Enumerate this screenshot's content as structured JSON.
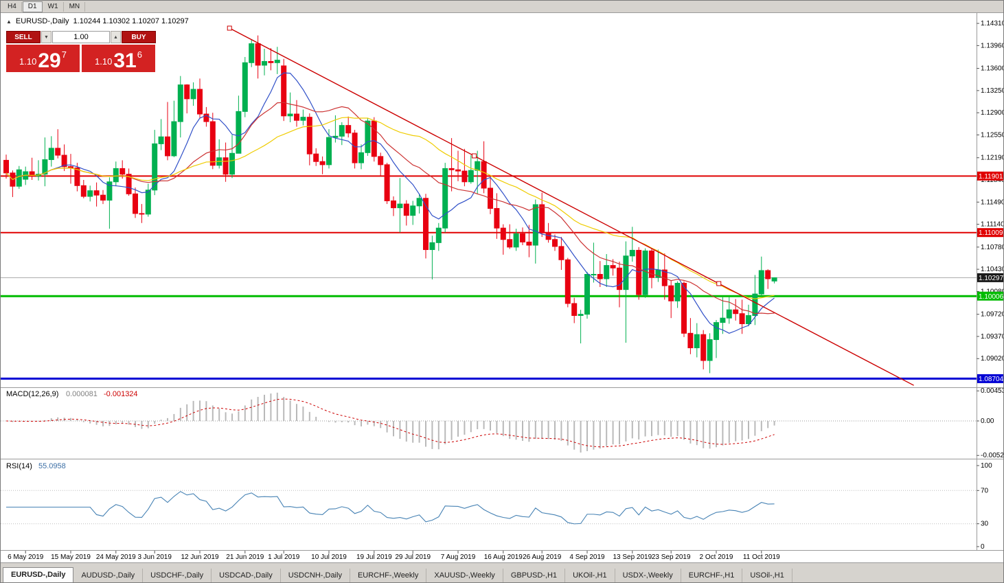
{
  "toolbar": {
    "timeframes": [
      "H4",
      "D1",
      "W1",
      "MN"
    ],
    "active": "D1"
  },
  "chart_header": {
    "collapse_icon": "▲",
    "symbol": "EURUSD-,Daily",
    "ohlc": "1.10244 1.10302 1.10207 1.10297"
  },
  "trade_panel": {
    "sell_label": "SELL",
    "buy_label": "BUY",
    "volume": "1.00",
    "spin_down_icon": "▼",
    "spin_up_icon": "▲",
    "sell_price": {
      "prefix": "1.10",
      "main": "29",
      "pip": "7"
    },
    "buy_price": {
      "prefix": "1.10",
      "main": "31",
      "pip": "6"
    }
  },
  "price_axis": [
    "1.14310",
    "1.13960",
    "1.13600",
    "1.13250",
    "1.12900",
    "1.12550",
    "1.12190",
    "1.11840",
    "1.11490",
    "1.11140",
    "1.10780",
    "1.10430",
    "1.10080",
    "1.09720",
    "1.09370",
    "1.09020"
  ],
  "macd_panel": {
    "name": "MACD(12,26,9)",
    "value_main": "0.000081",
    "value_signal": "-0.001324",
    "axis_labels": [
      "0.004536",
      "0.00",
      "-0.005205"
    ]
  },
  "rsi_panel": {
    "name": "RSI(14)",
    "value": "55.0958",
    "axis_labels": [
      "100",
      "70",
      "30",
      "0"
    ]
  },
  "tabs": [
    "EURUSD-,Daily",
    "AUDUSD-,Daily",
    "USDCHF-,Daily",
    "USDCAD-,Daily",
    "USDCNH-,Daily",
    "EURCHF-,Weekly",
    "XAUUSD-,Weekly",
    "GBPUSD-,H1",
    "UKOil-,H1",
    "USDX-,Weekly",
    "EURCHF-,H1",
    "USOil-,H1"
  ],
  "active_tab": 0,
  "chart_data": {
    "type": "candlestick",
    "symbol": "EURUSD",
    "timeframe": "Daily",
    "up_color": "#00B050",
    "down_color": "#E80011",
    "y_range": {
      "top": 1.1443,
      "bottom": 1.086
    },
    "levels": [
      {
        "label": "1.11901",
        "price": 1.11901,
        "color": "#e00000",
        "width": 2
      },
      {
        "label": "1.11009",
        "price": 1.11009,
        "color": "#e00000",
        "width": 2
      },
      {
        "label": "1.10006",
        "price": 1.10006,
        "color": "#00bb00",
        "width": 3
      },
      {
        "label": "1.08704",
        "price": 1.08704,
        "color": "#0000d4",
        "width": 3
      }
    ],
    "current_price": {
      "label": "1.10297",
      "price": 1.10297
    },
    "trendline": {
      "color": "#cc0000",
      "start": {
        "index": 34.6,
        "price": 1.14235
      },
      "end": {
        "index": 110.4,
        "price": 1.10204
      },
      "ray_to_index": 140.6
    },
    "moving_averages": [
      {
        "period": 8,
        "color": "#3050c8"
      },
      {
        "period": 17,
        "color": "#cc3333"
      },
      {
        "period": 30,
        "color": "#efcc00"
      }
    ],
    "macd": {
      "fast": 12,
      "slow": 26,
      "signal": 9,
      "histogram_color": "#b9b9b9",
      "signal_color": "#cc0000"
    },
    "rsi": {
      "period": 14,
      "color": "#4682B4",
      "levels": [
        70,
        30
      ]
    },
    "date_ticks": [
      {
        "index": 3,
        "label": "6 May 2019"
      },
      {
        "index": 10,
        "label": "15 May 2019"
      },
      {
        "index": 17,
        "label": "24 May 2019"
      },
      {
        "index": 23,
        "label": "3 Jun 2019"
      },
      {
        "index": 30,
        "label": "12 Jun 2019"
      },
      {
        "index": 37,
        "label": "21 Jun 2019"
      },
      {
        "index": 43,
        "label": "1 Jul 2019"
      },
      {
        "index": 50,
        "label": "10 Jul 2019"
      },
      {
        "index": 57,
        "label": "19 Jul 2019"
      },
      {
        "index": 63,
        "label": "29 Jul 2019"
      },
      {
        "index": 70,
        "label": "7 Aug 2019"
      },
      {
        "index": 77,
        "label": "16 Aug 2019"
      },
      {
        "index": 83,
        "label": "26 Aug 2019"
      },
      {
        "index": 90,
        "label": "4 Sep 2019"
      },
      {
        "index": 97,
        "label": "13 Sep 2019"
      },
      {
        "index": 103,
        "label": "23 Sep 2019"
      },
      {
        "index": 110,
        "label": "2 Oct 2019"
      },
      {
        "index": 117,
        "label": "11 Oct 2019"
      }
    ],
    "candles": [
      [
        "1 May 2019",
        1.1215,
        1.1224,
        1.1186,
        1.1195
      ],
      [
        "2 May 2019",
        1.1195,
        1.1199,
        1.1157,
        1.1174
      ],
      [
        "3 May 2019",
        1.1174,
        1.1206,
        1.117,
        1.12
      ],
      [
        "6 May 2019",
        1.1185,
        1.1205,
        1.1176,
        1.1197
      ],
      [
        "7 May 2019",
        1.1197,
        1.1219,
        1.1184,
        1.119
      ],
      [
        "8 May 2019",
        1.119,
        1.1215,
        1.1183,
        1.1193
      ],
      [
        "9 May 2019",
        1.1193,
        1.1251,
        1.1174,
        1.1216
      ],
      [
        "10 May 2019",
        1.1216,
        1.1253,
        1.1205,
        1.1234
      ],
      [
        "13 May 2019",
        1.1234,
        1.1264,
        1.1218,
        1.1223
      ],
      [
        "14 May 2019",
        1.1223,
        1.124,
        1.1198,
        1.1205
      ],
      [
        "15 May 2019",
        1.1205,
        1.1225,
        1.1178,
        1.1203
      ],
      [
        "16 May 2019",
        1.1203,
        1.1211,
        1.1166,
        1.1175
      ],
      [
        "17 May 2019",
        1.1175,
        1.1184,
        1.1155,
        1.1158
      ],
      [
        "20 May 2019",
        1.1158,
        1.1175,
        1.115,
        1.1167
      ],
      [
        "21 May 2019",
        1.1167,
        1.118,
        1.1142,
        1.116
      ],
      [
        "22 May 2019",
        1.116,
        1.1168,
        1.1146,
        1.1152
      ],
      [
        "23 May 2019",
        1.1152,
        1.1188,
        1.1107,
        1.1181
      ],
      [
        "24 May 2019",
        1.1181,
        1.1213,
        1.1174,
        1.1202
      ],
      [
        "27 May 2019",
        1.1202,
        1.1215,
        1.1186,
        1.1193
      ],
      [
        "28 May 2019",
        1.1193,
        1.1202,
        1.1159,
        1.1162
      ],
      [
        "29 May 2019",
        1.1162,
        1.1172,
        1.1124,
        1.1131
      ],
      [
        "30 May 2019",
        1.1131,
        1.1146,
        1.1116,
        1.113
      ],
      [
        "31 May 2019",
        1.113,
        1.1178,
        1.1126,
        1.1168
      ],
      [
        "3 Jun 2019",
        1.1168,
        1.1263,
        1.116,
        1.1241
      ],
      [
        "4 Jun 2019",
        1.1241,
        1.128,
        1.1231,
        1.1252
      ],
      [
        "5 Jun 2019",
        1.1252,
        1.1307,
        1.1215,
        1.1222
      ],
      [
        "6 Jun 2019",
        1.1222,
        1.1309,
        1.122,
        1.1276
      ],
      [
        "7 Jun 2019",
        1.1276,
        1.1348,
        1.1251,
        1.1334
      ],
      [
        "10 Jun 2019",
        1.1334,
        1.1335,
        1.1289,
        1.1312
      ],
      [
        "11 Jun 2019",
        1.1312,
        1.1338,
        1.1301,
        1.1327
      ],
      [
        "12 Jun 2019",
        1.1327,
        1.1344,
        1.1282,
        1.1288
      ],
      [
        "13 Jun 2019",
        1.1288,
        1.1299,
        1.1268,
        1.1276
      ],
      [
        "14 Jun 2019",
        1.1276,
        1.129,
        1.1201,
        1.1207
      ],
      [
        "17 Jun 2019",
        1.1207,
        1.1248,
        1.1202,
        1.1219
      ],
      [
        "18 Jun 2019",
        1.1219,
        1.1243,
        1.1181,
        1.1193
      ],
      [
        "19 Jun 2019",
        1.1193,
        1.1255,
        1.1187,
        1.1226
      ],
      [
        "20 Jun 2019",
        1.1226,
        1.1317,
        1.1226,
        1.1292
      ],
      [
        "21 Jun 2019",
        1.1292,
        1.1378,
        1.1283,
        1.1369
      ],
      [
        "24 Jun 2019",
        1.1369,
        1.1405,
        1.1362,
        1.1399
      ],
      [
        "25 Jun 2019",
        1.1399,
        1.1412,
        1.1344,
        1.1365
      ],
      [
        "26 Jun 2019",
        1.1365,
        1.1391,
        1.1349,
        1.1371
      ],
      [
        "27 Jun 2019",
        1.1371,
        1.1392,
        1.1357,
        1.1369
      ],
      [
        "28 Jun 2019",
        1.1369,
        1.1394,
        1.1351,
        1.1373
      ],
      [
        "1 Jul 2019",
        1.1364,
        1.1375,
        1.1277,
        1.1285
      ],
      [
        "2 Jul 2019",
        1.1285,
        1.1322,
        1.1275,
        1.1288
      ],
      [
        "3 Jul 2019",
        1.1288,
        1.131,
        1.1268,
        1.1278
      ],
      [
        "4 Jul 2019",
        1.1278,
        1.1295,
        1.127,
        1.1283
      ],
      [
        "5 Jul 2019",
        1.1283,
        1.1289,
        1.1207,
        1.1225
      ],
      [
        "8 Jul 2019",
        1.1225,
        1.1234,
        1.1206,
        1.1213
      ],
      [
        "9 Jul 2019",
        1.1213,
        1.1221,
        1.1193,
        1.1208
      ],
      [
        "10 Jul 2019",
        1.1208,
        1.1264,
        1.1202,
        1.1251
      ],
      [
        "11 Jul 2019",
        1.1251,
        1.1286,
        1.1243,
        1.1253
      ],
      [
        "12 Jul 2019",
        1.1253,
        1.1275,
        1.1239,
        1.127
      ],
      [
        "15 Jul 2019",
        1.127,
        1.1284,
        1.1251,
        1.1258
      ],
      [
        "16 Jul 2019",
        1.1258,
        1.1263,
        1.1202,
        1.1211
      ],
      [
        "17 Jul 2019",
        1.1211,
        1.124,
        1.1201,
        1.1227
      ],
      [
        "18 Jul 2019",
        1.1227,
        1.1282,
        1.1222,
        1.1277
      ],
      [
        "19 Jul 2019",
        1.1277,
        1.1283,
        1.1213,
        1.1221
      ],
      [
        "22 Jul 2019",
        1.1221,
        1.1227,
        1.1191,
        1.1208
      ],
      [
        "23 Jul 2019",
        1.1208,
        1.1211,
        1.1146,
        1.1151
      ],
      [
        "24 Jul 2019",
        1.1151,
        1.1158,
        1.1127,
        1.114
      ],
      [
        "25 Jul 2019",
        1.114,
        1.1187,
        1.1101,
        1.1146
      ],
      [
        "26 Jul 2019",
        1.1146,
        1.1152,
        1.1112,
        1.1128
      ],
      [
        "29 Jul 2019",
        1.1128,
        1.1151,
        1.1113,
        1.1143
      ],
      [
        "30 Jul 2019",
        1.1143,
        1.1162,
        1.1131,
        1.1155
      ],
      [
        "31 Jul 2019",
        1.1155,
        1.1162,
        1.106,
        1.1074
      ],
      [
        "1 Aug 2019",
        1.1074,
        1.1096,
        1.1027,
        1.1085
      ],
      [
        "2 Aug 2019",
        1.1085,
        1.1116,
        1.1072,
        1.1108
      ],
      [
        "5 Aug 2019",
        1.1108,
        1.1211,
        1.1101,
        1.1202
      ],
      [
        "6 Aug 2019",
        1.1202,
        1.125,
        1.1166,
        1.12
      ],
      [
        "7 Aug 2019",
        1.12,
        1.123,
        1.1182,
        1.1198
      ],
      [
        "8 Aug 2019",
        1.1198,
        1.1233,
        1.1174,
        1.1181
      ],
      [
        "9 Aug 2019",
        1.1181,
        1.1223,
        1.1178,
        1.1199
      ],
      [
        "12 Aug 2019",
        1.1199,
        1.123,
        1.1162,
        1.1213
      ],
      [
        "13 Aug 2019",
        1.1213,
        1.1245,
        1.1163,
        1.1171
      ],
      [
        "14 Aug 2019",
        1.1171,
        1.1191,
        1.113,
        1.1139
      ],
      [
        "15 Aug 2019",
        1.1139,
        1.1163,
        1.1091,
        1.1108
      ],
      [
        "16 Aug 2019",
        1.1108,
        1.1114,
        1.1066,
        1.109
      ],
      [
        "19 Aug 2019",
        1.109,
        1.1114,
        1.1075,
        1.1078
      ],
      [
        "20 Aug 2019",
        1.1078,
        1.1107,
        1.1072,
        1.1099
      ],
      [
        "21 Aug 2019",
        1.1099,
        1.1109,
        1.1081,
        1.1086
      ],
      [
        "22 Aug 2019",
        1.1086,
        1.1113,
        1.1062,
        1.1081
      ],
      [
        "23 Aug 2019",
        1.1081,
        1.1153,
        1.1052,
        1.1145
      ],
      [
        "26 Aug 2019",
        1.1145,
        1.1164,
        1.1094,
        1.1101
      ],
      [
        "27 Aug 2019",
        1.1101,
        1.1116,
        1.1085,
        1.109
      ],
      [
        "28 Aug 2019",
        1.109,
        1.1098,
        1.1072,
        1.1079
      ],
      [
        "29 Aug 2019",
        1.1079,
        1.1094,
        1.1042,
        1.1058
      ],
      [
        "30 Aug 2019",
        1.1058,
        1.1061,
        1.0983,
        1.0989
      ],
      [
        "2 Sep 2019",
        1.0989,
        1.0998,
        1.0958,
        1.097
      ],
      [
        "3 Sep 2019",
        1.097,
        1.0979,
        1.0926,
        1.0972
      ],
      [
        "4 Sep 2019",
        1.0972,
        1.1039,
        1.0965,
        1.1035
      ],
      [
        "5 Sep 2019",
        1.1035,
        1.1085,
        1.1022,
        1.1035
      ],
      [
        "6 Sep 2019",
        1.1035,
        1.1056,
        1.1015,
        1.1028
      ],
      [
        "9 Sep 2019",
        1.1028,
        1.1067,
        1.1015,
        1.1049
      ],
      [
        "10 Sep 2019",
        1.1049,
        1.1059,
        1.1033,
        1.1045
      ],
      [
        "11 Sep 2019",
        1.1045,
        1.1055,
        1.0983,
        1.1011
      ],
      [
        "12 Sep 2019",
        1.1011,
        1.1087,
        1.0927,
        1.1064
      ],
      [
        "13 Sep 2019",
        1.1064,
        1.111,
        1.1055,
        1.1073
      ],
      [
        "16 Sep 2019",
        1.1073,
        1.1078,
        1.0995,
        1.1003
      ],
      [
        "17 Sep 2019",
        1.1003,
        1.1076,
        1.0998,
        1.1072
      ],
      [
        "18 Sep 2019",
        1.1072,
        1.1076,
        1.1013,
        1.103
      ],
      [
        "19 Sep 2019",
        1.103,
        1.1074,
        1.1023,
        1.1042
      ],
      [
        "20 Sep 2019",
        1.1042,
        1.1068,
        1.0995,
        1.1017
      ],
      [
        "23 Sep 2019",
        1.1017,
        1.1025,
        1.0966,
        1.0993
      ],
      [
        "24 Sep 2019",
        1.0993,
        1.1024,
        1.0982,
        1.1021
      ],
      [
        "25 Sep 2019",
        1.1021,
        1.1024,
        1.0936,
        1.0942
      ],
      [
        "26 Sep 2019",
        1.0942,
        1.0966,
        1.0909,
        1.0919
      ],
      [
        "27 Sep 2019",
        1.0919,
        1.0958,
        1.0904,
        1.094
      ],
      [
        "30 Sep 2019",
        1.094,
        1.0947,
        1.0885,
        1.0899
      ],
      [
        "1 Oct 2019",
        1.0899,
        1.0942,
        1.0879,
        1.0932
      ],
      [
        "2 Oct 2019",
        1.0932,
        1.0963,
        1.0903,
        1.0959
      ],
      [
        "3 Oct 2019",
        1.0959,
        1.0999,
        1.0941,
        1.0966
      ],
      [
        "4 Oct 2019",
        1.0966,
        1.0999,
        1.0957,
        1.0979
      ],
      [
        "7 Oct 2019",
        1.0979,
        1.0996,
        1.0962,
        1.0973
      ],
      [
        "8 Oct 2019",
        1.0973,
        1.0995,
        1.0941,
        1.0957
      ],
      [
        "9 Oct 2019",
        1.0957,
        1.0987,
        1.0953,
        1.097
      ],
      [
        "10 Oct 2019",
        1.097,
        1.1034,
        1.0955,
        1.1004
      ],
      [
        "11 Oct 2019",
        1.1004,
        1.1063,
        1.1001,
        1.1041
      ],
      [
        "14 Oct 2019",
        1.1041,
        1.1043,
        1.1012,
        1.1028
      ],
      [
        "15 Oct 2019",
        1.10244,
        1.10302,
        1.10207,
        1.10297
      ]
    ]
  }
}
